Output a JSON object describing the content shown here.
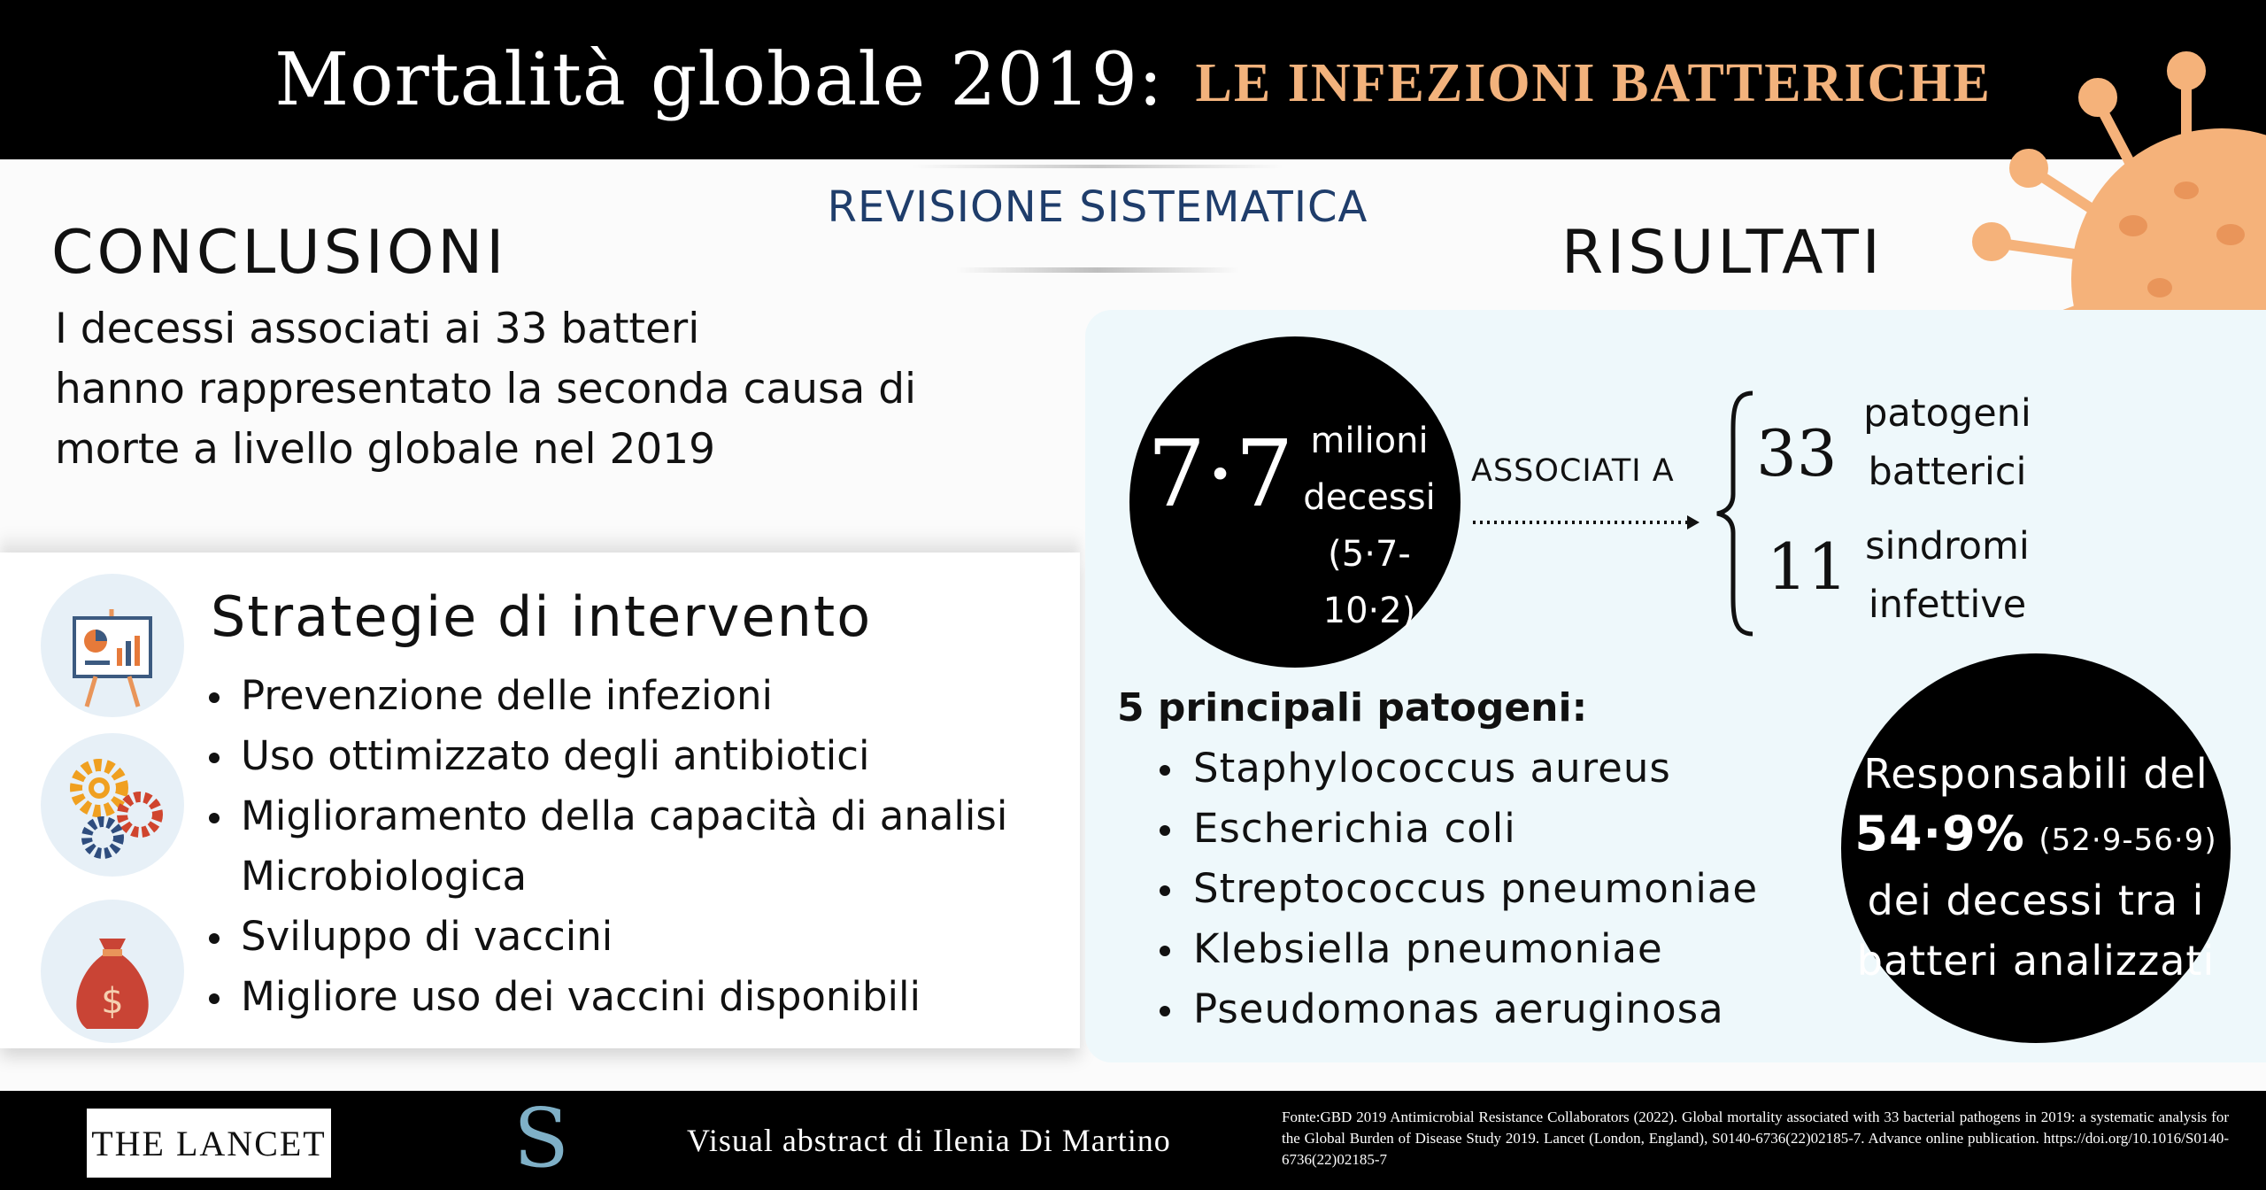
{
  "header": {
    "title_main": "Mortalità globale 2019:",
    "title_accent": "LE INFEZIONI BATTERICHE"
  },
  "banner": "REVISIONE SISTEMATICA",
  "conclusioni": {
    "title": "CONCLUSIONI",
    "lines": [
      "I decessi associati ai 33 batteri",
      "hanno rappresentato la seconda causa di",
      "morte a livello globale nel 2019"
    ]
  },
  "strategie": {
    "title": "Strategie di intervento",
    "items": [
      "Prevenzione delle infezioni",
      "Uso ottimizzato degli antibiotici",
      "Miglioramento della capacità di analisi",
      "Microbiologica",
      "Sviluppo di vaccini",
      "Migliore uso dei vaccini disponibili"
    ],
    "icons": [
      "chart-easel-icon",
      "gears-icon",
      "money-bag-icon"
    ]
  },
  "risultati": {
    "title": "RISULTATI",
    "deaths_value": "7·7",
    "deaths_lines": [
      "milioni",
      "decessi",
      "(5·7-10·2)"
    ],
    "associati": "ASSOCIATI A",
    "pathogens_count": "33",
    "pathogens_label": [
      "patogeni",
      "batterici"
    ],
    "syndromes_count": "11",
    "syndromes_label": [
      "sindromi",
      "infettive"
    ],
    "top5_title": "5 principali patogeni:",
    "top5": [
      "Staphylococcus aureus",
      "Escherichia coli",
      "Streptococcus pneumoniae",
      "Klebsiella pneumoniae",
      "Pseudomonas aeruginosa"
    ],
    "share_line1": "Responsabili del",
    "share_pct": "54·9%",
    "share_ci": "(52·9-56·9)",
    "share_line3": "dei decessi tra i",
    "share_line4": "batteri analizzati"
  },
  "footer": {
    "lancet": "THE LANCET",
    "s_logo": "S",
    "credit": "Visual abstract di Ilenia Di Martino",
    "fonte": "Fonte:GBD 2019 Antimicrobial Resistance Collaborators (2022). Global mortality associated with 33 bacterial pathogens in 2019: a systematic analysis for the Global Burden of Disease Study 2019. Lancet (London, England), S0140-6736(22)02185-7. Advance online publication. https://doi.org/10.1016/S0140-6736(22)02185-7"
  },
  "colors": {
    "header_bg": "#000000",
    "accent": "#f2b27c",
    "banner_blue": "#1f3d6b",
    "results_bg": "#eef8fb",
    "virus": "#f5b27a"
  }
}
